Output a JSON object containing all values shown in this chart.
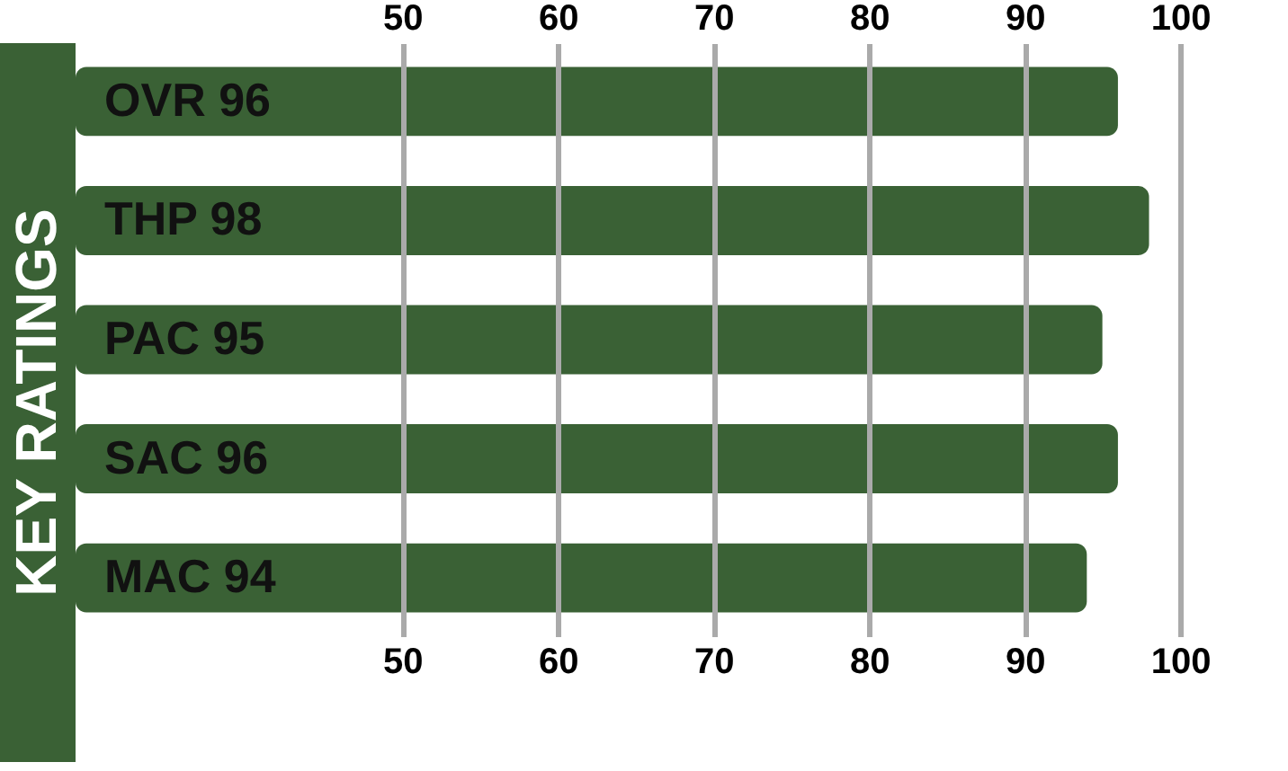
{
  "chart_data": {
    "type": "bar",
    "orientation": "horizontal",
    "title": "KEY RATINGS",
    "categories": [
      "OVR 96",
      "THP 98",
      "PAC 95",
      "SAC 96",
      "MAC 94"
    ],
    "values": [
      96,
      98,
      95,
      96,
      94
    ],
    "color": "#3a6135",
    "xlim": [
      29,
      103
    ],
    "xticks": [
      50,
      60,
      70,
      80,
      90,
      100
    ],
    "x2lim": [
      29,
      103
    ],
    "x2ticks": [
      50,
      60,
      70,
      80,
      90,
      100
    ],
    "grid": "x",
    "legend": false
  }
}
